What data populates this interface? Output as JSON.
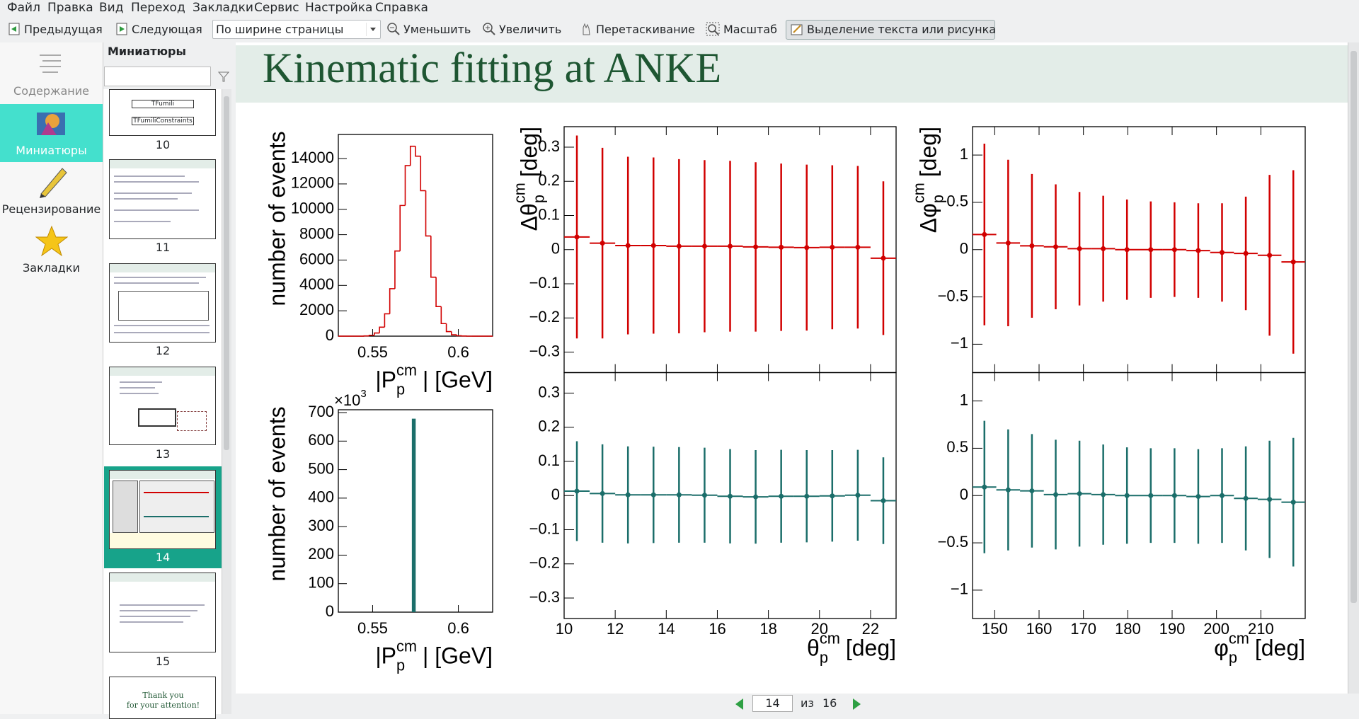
{
  "menu": [
    "Файл",
    "Правка",
    "Вид",
    "Переход",
    "Закладки",
    "Сервис",
    "Настройка",
    "Справка"
  ],
  "toolbar": {
    "previous": "Предыдущая",
    "next": "Следующая",
    "zoom_mode": "По ширине страницы",
    "zoom_out": "Уменьшить",
    "zoom_in": "Увеличить",
    "browse": "Перетаскивание",
    "magnifier": "Масштаб",
    "selection": "Выделение текста или рисунка"
  },
  "sidebar": {
    "tabs": [
      "Содержание",
      "Миниатюры",
      "Рецензирование",
      "Закладки"
    ]
  },
  "thumbnails": {
    "title": "Миниатюры",
    "pages": [
      10,
      11,
      12,
      13,
      14,
      15
    ],
    "page10_labels": [
      "TFumili",
      "TFumiliConstraints"
    ],
    "page16_text": [
      "Thank you",
      "for your attention!"
    ]
  },
  "slide": {
    "title": "Kinematic fitting at ANKE",
    "charts": [
      {
        "type": "histogram",
        "color": "#d10000",
        "bins": [
          0.53,
          0.533,
          0.536,
          0.539,
          0.542,
          0.545,
          0.548,
          0.551,
          0.554,
          0.557,
          0.56,
          0.563,
          0.566,
          0.569,
          0.572,
          0.575,
          0.578,
          0.581,
          0.584,
          0.587,
          0.59,
          0.593,
          0.596,
          0.599,
          0.602,
          0.605,
          0.608,
          0.611,
          0.614,
          0.617,
          0.62
        ],
        "counts": [
          0,
          0,
          0,
          0,
          0,
          20,
          70,
          250,
          710,
          1760,
          3740,
          6710,
          10300,
          13440,
          14970,
          14190,
          11470,
          7900,
          4650,
          2330,
          990,
          360,
          110,
          30,
          10,
          0,
          0,
          0,
          0,
          0
        ],
        "xlim": [
          0.53,
          0.62
        ],
        "xticks": [
          0.55,
          0.6
        ],
        "ylim": [
          0,
          15900
        ],
        "yticks": [
          0,
          2000,
          4000,
          6000,
          8000,
          10000,
          12000,
          14000
        ],
        "xlabel": {
          "text": "|P",
          "sup": "cm",
          "sub": "p",
          "post": "| [GeV]"
        },
        "ylabel": "number of events"
      },
      {
        "type": "histogram",
        "color": "#1b6e6a",
        "bins": [
          0.5735,
          0.5745
        ],
        "counts": [
          675
        ],
        "xlim": [
          0.53,
          0.62
        ],
        "xticks": [
          0.55,
          0.6
        ],
        "ylim": [
          0,
          710
        ],
        "yticks": [
          0,
          100,
          200,
          300,
          400,
          500,
          600,
          700
        ],
        "y_multiplier": {
          "text": "×10",
          "sup": "3"
        },
        "xlabel": {
          "text": "|P",
          "sup": "cm",
          "sub": "p",
          "post": "| [GeV]"
        },
        "ylabel": "number of events"
      },
      {
        "type": "errorbar",
        "bins": [
          10,
          11,
          12,
          13,
          14,
          15,
          16,
          17,
          18,
          19,
          20,
          21,
          22,
          23
        ],
        "xlim": [
          10,
          23
        ],
        "xticks": [
          10,
          12,
          14,
          16,
          18,
          20,
          22
        ],
        "xlabel": {
          "text": "θ",
          "sup": "cm",
          "sub": "p",
          "post": "[deg]"
        },
        "panels": [
          {
            "ylabel": {
              "text": "Δθ",
              "sup": "cm",
              "sub": "p",
              "post": "[deg]"
            },
            "ylim": [
              -0.36,
              0.36
            ],
            "yticks": [
              {
                "value": -0.3,
                "label": "−0.3"
              },
              {
                "value": -0.2,
                "label": "−0.2"
              },
              {
                "value": -0.1,
                "label": "−0.1"
              },
              0,
              0.1,
              0.2,
              0.3
            ],
            "series": {
              "color": "#d10000",
              "values": [
                0.037,
                0.019,
                0.012,
                0.012,
                0.01,
                0.01,
                0.01,
                0.008,
                0.007,
                0.006,
                0.007,
                0.007,
                -0.025
              ],
              "errors": [
                0.297,
                0.279,
                0.26,
                0.258,
                0.255,
                0.252,
                0.25,
                0.248,
                0.245,
                0.243,
                0.24,
                0.238,
                0.225
              ]
            }
          },
          {
            "ylim": [
              -0.36,
              0.36
            ],
            "yticks": [
              {
                "value": -0.3,
                "label": "−0.3"
              },
              {
                "value": -0.2,
                "label": "−0.2"
              },
              {
                "value": -0.1,
                "label": "−0.1"
              },
              0,
              0.1,
              0.2,
              0.3
            ],
            "series": {
              "color": "#1b6e6a",
              "values": [
                0.013,
                0.006,
                0.002,
                0.002,
                0.002,
                0.001,
                -0.002,
                -0.004,
                -0.002,
                -0.002,
                -0.001,
                0.001,
                -0.015
              ],
              "errors": [
                0.146,
                0.144,
                0.142,
                0.141,
                0.14,
                0.139,
                0.138,
                0.137,
                0.136,
                0.135,
                0.134,
                0.133,
                0.127
              ]
            }
          }
        ]
      },
      {
        "type": "errorbar",
        "bins": [
          145,
          150.36,
          155.71,
          161.07,
          166.43,
          171.79,
          177.14,
          182.5,
          187.86,
          193.21,
          198.57,
          203.93,
          209.29,
          214.64,
          220
        ],
        "xlim": [
          145,
          220
        ],
        "xticks": [
          150,
          160,
          170,
          180,
          190,
          200,
          210
        ],
        "xlabel": {
          "text": "φ",
          "sup": "cm",
          "sub": "p",
          "post": "[deg]"
        },
        "panels": [
          {
            "ylabel": {
              "text": "Δφ",
              "sup": "cm",
              "sub": "p",
              "post": "[deg]"
            },
            "ylim": [
              -1.3,
              1.3
            ],
            "yticks": [
              {
                "value": -1,
                "label": "−1"
              },
              {
                "value": -0.5,
                "label": "−0.5"
              },
              0,
              0.5,
              1
            ],
            "series": {
              "color": "#d10000",
              "values": [
                0.16,
                0.07,
                0.04,
                0.03,
                0.01,
                0.01,
                0.0,
                0.0,
                0.0,
                -0.01,
                -0.03,
                -0.04,
                -0.06,
                -0.13
              ],
              "errors": [
                0.96,
                0.88,
                0.76,
                0.66,
                0.6,
                0.56,
                0.53,
                0.51,
                0.5,
                0.5,
                0.52,
                0.6,
                0.85,
                0.97
              ]
            }
          },
          {
            "ylim": [
              -1.3,
              1.3
            ],
            "yticks": [
              {
                "value": -1,
                "label": "−1"
              },
              {
                "value": -0.5,
                "label": "−0.5"
              },
              0,
              0.5,
              1
            ],
            "series": {
              "color": "#1b6e6a",
              "values": [
                0.09,
                0.06,
                0.05,
                0.01,
                0.02,
                0.01,
                0.0,
                0.0,
                0.0,
                -0.01,
                0.0,
                -0.03,
                -0.04,
                -0.07
              ],
              "errors": [
                0.7,
                0.64,
                0.6,
                0.58,
                0.56,
                0.53,
                0.51,
                0.5,
                0.5,
                0.5,
                0.5,
                0.55,
                0.62,
                0.68
              ]
            }
          }
        ]
      }
    ]
  },
  "pager": {
    "current": "14",
    "of": "из",
    "total": "16"
  }
}
